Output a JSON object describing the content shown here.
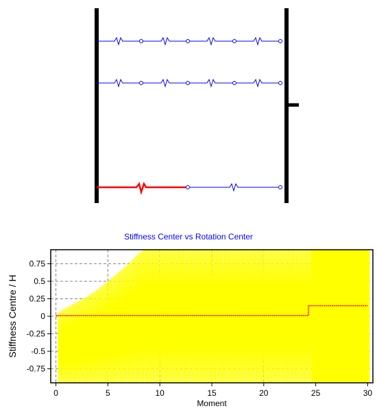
{
  "colors": {
    "wall": "#000000",
    "spring": "#0000ff",
    "failed_spring": "#ff0000",
    "response_fill": "#ffff00",
    "trace": "#ff0000",
    "grid": "#808080",
    "title": "#0000ff"
  },
  "chart_data": {
    "type": "line",
    "title": "Stiffness Center vs Rotation Center",
    "xlabel": "Moment",
    "ylabel": "Stiffness Centre / H",
    "xlim": [
      -0.5,
      30.5
    ],
    "ylim": [
      -0.95,
      0.95
    ],
    "xticks": [
      0,
      5,
      10,
      15,
      20,
      25,
      30
    ],
    "yticks": [
      0.75,
      0.5,
      0.25,
      0,
      -0.25,
      -0.5,
      -0.75
    ],
    "ytick_labels": [
      "0.75",
      "0.5",
      "0.25",
      "0",
      "-0.25",
      "-0.5",
      "-0.75"
    ],
    "grid": true,
    "series": [
      {
        "role": "rotation-center-envelope",
        "style": "oscillating-fill",
        "x_range": [
          0.2,
          30.2
        ],
        "envelope": {
          "x": [
            0.2,
            1,
            2,
            3,
            4,
            5,
            6,
            7,
            8,
            9,
            10,
            11,
            12,
            13,
            14,
            15,
            16,
            17,
            18,
            19,
            20,
            21,
            22,
            23,
            24,
            24.5,
            30.2
          ],
          "upper": [
            0.05,
            0.12,
            0.2,
            0.28,
            0.38,
            0.5,
            0.62,
            0.75,
            0.9,
            1.0,
            1.0,
            1.0,
            1.0,
            1.0,
            1.0,
            1.0,
            1.0,
            1.0,
            1.0,
            1.0,
            1.0,
            1.0,
            1.0,
            1.0,
            1.0,
            1.0,
            1.0
          ],
          "lower": [
            -0.95,
            -0.95,
            -0.95,
            -0.95,
            -0.95,
            -0.95,
            -0.95,
            -0.95,
            -0.95,
            -0.95,
            -0.95,
            -0.95,
            -0.95,
            -0.95,
            -0.95,
            -0.95,
            -0.95,
            -0.95,
            -0.95,
            -0.95,
            -0.95,
            -0.95,
            -0.95,
            -0.95,
            -0.95,
            -0.95,
            -0.95
          ]
        },
        "solid_fill_from": 24.6
      },
      {
        "role": "stiffness-center",
        "style": "step-line",
        "x": [
          0,
          24.3,
          24.3,
          30
        ],
        "y": [
          0.01,
          0.01,
          0.15,
          0.15
        ]
      }
    ]
  }
}
